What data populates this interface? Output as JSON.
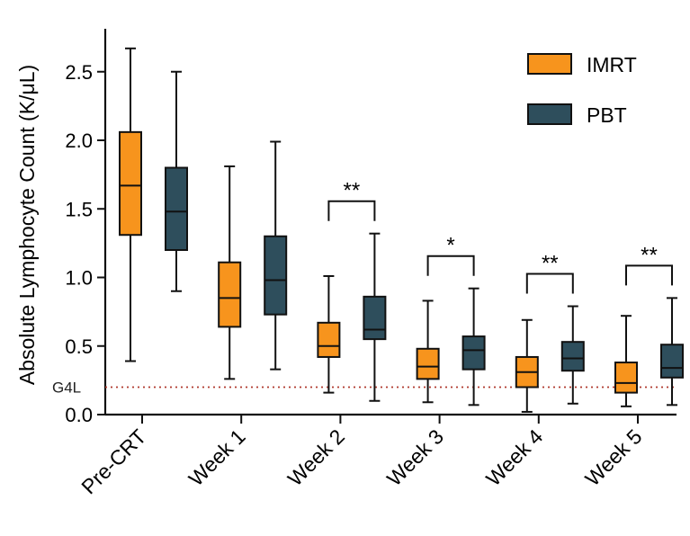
{
  "chart_data": {
    "type": "box",
    "ylabel": "Absolute Lymphocyte Count (K/μL)",
    "xlabel": "",
    "title": "",
    "ylim": [
      0,
      2.8
    ],
    "y_ticks": [
      0.0,
      0.5,
      1.0,
      1.5,
      2.0,
      2.5
    ],
    "y_tick_labels": [
      "0.0",
      "0.5",
      "1.0",
      "1.5",
      "2.0",
      "2.5"
    ],
    "categories": [
      "Pre-CRT",
      "Week 1",
      "Week 2",
      "Week 3",
      "Week 4",
      "Week 5"
    ],
    "legend_position": "top-right",
    "reference_line": {
      "label": "G4L",
      "value": 0.2,
      "color": "#b03a2e"
    },
    "series": [
      {
        "name": "IMRT",
        "color": "#f7941d",
        "boxes": [
          {
            "min": 0.39,
            "q1": 1.31,
            "median": 1.67,
            "q3": 2.06,
            "max": 2.67
          },
          {
            "min": 0.26,
            "q1": 0.64,
            "median": 0.85,
            "q3": 1.11,
            "max": 1.81
          },
          {
            "min": 0.16,
            "q1": 0.42,
            "median": 0.5,
            "q3": 0.67,
            "max": 1.01
          },
          {
            "min": 0.09,
            "q1": 0.26,
            "median": 0.35,
            "q3": 0.48,
            "max": 0.83
          },
          {
            "min": 0.02,
            "q1": 0.2,
            "median": 0.31,
            "q3": 0.42,
            "max": 0.69
          },
          {
            "min": 0.06,
            "q1": 0.16,
            "median": 0.23,
            "q3": 0.38,
            "max": 0.72
          }
        ]
      },
      {
        "name": "PBT",
        "color": "#2e4e5c",
        "boxes": [
          {
            "min": 0.9,
            "q1": 1.2,
            "median": 1.48,
            "q3": 1.8,
            "max": 2.5
          },
          {
            "min": 0.33,
            "q1": 0.73,
            "median": 0.98,
            "q3": 1.3,
            "max": 1.99
          },
          {
            "min": 0.1,
            "q1": 0.55,
            "median": 0.62,
            "q3": 0.86,
            "max": 1.32
          },
          {
            "min": 0.07,
            "q1": 0.33,
            "median": 0.47,
            "q3": 0.57,
            "max": 0.92
          },
          {
            "min": 0.08,
            "q1": 0.32,
            "median": 0.41,
            "q3": 0.53,
            "max": 0.79
          },
          {
            "min": 0.07,
            "q1": 0.27,
            "median": 0.34,
            "q3": 0.51,
            "max": 0.85
          }
        ]
      }
    ],
    "significance": [
      {
        "category": "Week 2",
        "label": "**"
      },
      {
        "category": "Week 3",
        "label": "*"
      },
      {
        "category": "Week 4",
        "label": "**"
      },
      {
        "category": "Week 5",
        "label": "**"
      }
    ]
  }
}
